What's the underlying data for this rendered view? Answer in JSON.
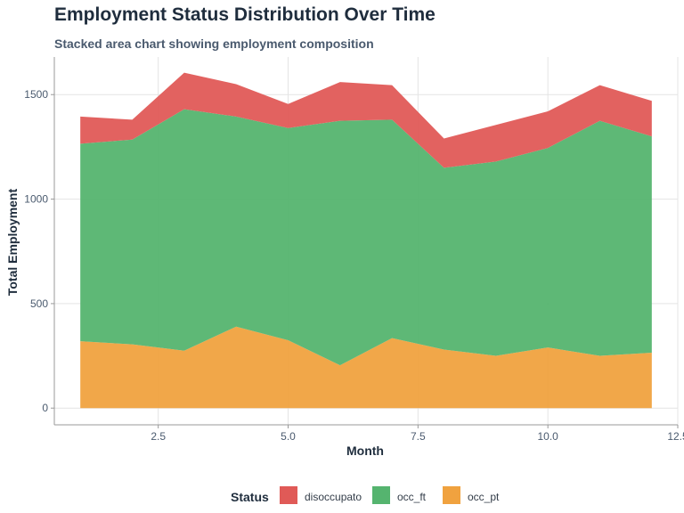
{
  "colors": {
    "disoccupato": "#e05a57",
    "occ_ft": "#55b46f",
    "occ_pt": "#f0a23f"
  },
  "chart_data": {
    "type": "area",
    "stacked": true,
    "title": "Employment Status Distribution Over Time",
    "subtitle": "Stacked area chart showing employment composition",
    "xlabel": "Month",
    "ylabel": "Total Employment",
    "x": [
      1,
      2,
      3,
      4,
      5,
      6,
      7,
      8,
      9,
      10,
      11,
      12
    ],
    "xlim": [
      0.5,
      12.5
    ],
    "ylim": [
      -80,
      1680
    ],
    "x_ticks": [
      2.5,
      5.0,
      7.5,
      10.0,
      12.5
    ],
    "x_tick_labels": [
      "2.5",
      "5.0",
      "7.5",
      "10.0",
      "12.5"
    ],
    "y_ticks": [
      0,
      500,
      1000,
      1500
    ],
    "y_tick_labels": [
      "0",
      "500",
      "1000",
      "1500"
    ],
    "grid": true,
    "series": [
      {
        "name": "occ_pt",
        "values": [
          320,
          305,
          275,
          390,
          325,
          205,
          335,
          280,
          250,
          290,
          250,
          265
        ]
      },
      {
        "name": "occ_ft",
        "values": [
          945,
          980,
          1155,
          1005,
          1015,
          1170,
          1045,
          870,
          930,
          955,
          1125,
          1035
        ]
      },
      {
        "name": "disoccupato",
        "values": [
          130,
          95,
          175,
          155,
          115,
          185,
          165,
          140,
          175,
          175,
          170,
          170
        ]
      }
    ],
    "legend": {
      "title": "Status",
      "position": "bottom",
      "items": [
        "disoccupato",
        "occ_ft",
        "occ_pt"
      ]
    }
  }
}
